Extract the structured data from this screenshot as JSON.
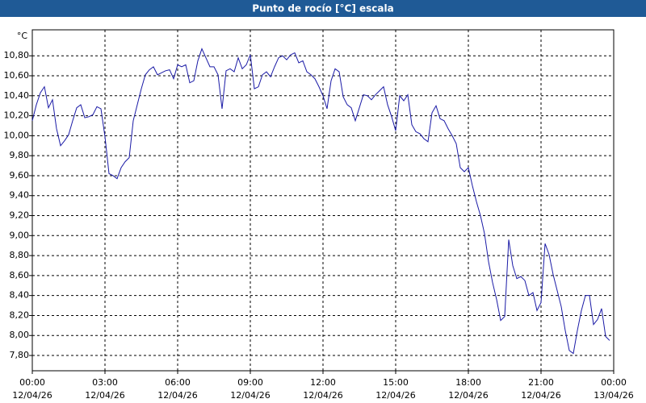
{
  "chart_data": {
    "type": "line",
    "title": "Punto de rocío [°C] escala",
    "y_unit": "°C",
    "color": "#1a1aa6",
    "grid": true,
    "xlim": [
      0,
      1440
    ],
    "xticks": [
      {
        "value": 0,
        "label": "00:00",
        "date": "12/04/26"
      },
      {
        "value": 180,
        "label": "03:00",
        "date": "12/04/26"
      },
      {
        "value": 360,
        "label": "06:00",
        "date": "12/04/26"
      },
      {
        "value": 540,
        "label": "09:00",
        "date": "12/04/26"
      },
      {
        "value": 720,
        "label": "12:00",
        "date": "12/04/26"
      },
      {
        "value": 900,
        "label": "15:00",
        "date": "12/04/26"
      },
      {
        "value": 1080,
        "label": "18:00",
        "date": "12/04/26"
      },
      {
        "value": 1260,
        "label": "21:00",
        "date": "12/04/26"
      },
      {
        "value": 1440,
        "label": "00:00",
        "date": "13/04/26"
      }
    ],
    "ylim": [
      7.647,
      11.06
    ],
    "yticks": [
      {
        "value": 7.8,
        "label": "7,80"
      },
      {
        "value": 8.0,
        "label": "8,00"
      },
      {
        "value": 8.2,
        "label": "8,20"
      },
      {
        "value": 8.4,
        "label": "8,40"
      },
      {
        "value": 8.6,
        "label": "8,60"
      },
      {
        "value": 8.8,
        "label": "8,80"
      },
      {
        "value": 9.0,
        "label": "9,00"
      },
      {
        "value": 9.2,
        "label": "9,20"
      },
      {
        "value": 9.4,
        "label": "9,40"
      },
      {
        "value": 9.6,
        "label": "9,60"
      },
      {
        "value": 9.8,
        "label": "9,80"
      },
      {
        "value": 10.0,
        "label": "10,00"
      },
      {
        "value": 10.2,
        "label": "10,20"
      },
      {
        "value": 10.4,
        "label": "10,40"
      },
      {
        "value": 10.6,
        "label": "10,60"
      },
      {
        "value": 10.8,
        "label": "10,80"
      }
    ],
    "x": [
      0,
      10,
      20,
      30,
      40,
      50,
      60,
      70,
      80,
      90,
      100,
      110,
      120,
      130,
      140,
      150,
      160,
      170,
      180,
      190,
      200,
      210,
      220,
      230,
      240,
      250,
      260,
      270,
      280,
      290,
      300,
      310,
      320,
      330,
      340,
      350,
      360,
      370,
      380,
      390,
      400,
      410,
      420,
      430,
      440,
      450,
      460,
      470,
      480,
      490,
      500,
      510,
      520,
      530,
      540,
      550,
      560,
      570,
      580,
      590,
      600,
      610,
      620,
      630,
      640,
      650,
      660,
      670,
      680,
      690,
      700,
      710,
      720,
      730,
      740,
      750,
      760,
      770,
      780,
      790,
      800,
      810,
      820,
      830,
      840,
      850,
      860,
      870,
      880,
      890,
      900,
      910,
      920,
      930,
      940,
      950,
      960,
      970,
      980,
      990,
      1000,
      1010,
      1020,
      1030,
      1040,
      1050,
      1060,
      1070,
      1080,
      1090,
      1100,
      1110,
      1120,
      1130,
      1140,
      1150,
      1160,
      1170,
      1180,
      1190,
      1200,
      1210,
      1220,
      1230,
      1240,
      1250,
      1260,
      1270,
      1280,
      1290,
      1300,
      1310,
      1320,
      1330,
      1340,
      1350,
      1360,
      1370,
      1380,
      1390,
      1400,
      1410,
      1420,
      1430
    ],
    "values": [
      10.15,
      10.31,
      10.43,
      10.49,
      10.28,
      10.36,
      10.07,
      9.9,
      9.95,
      10.01,
      10.15,
      10.28,
      10.31,
      10.18,
      10.19,
      10.21,
      10.29,
      10.27,
      9.99,
      9.62,
      9.6,
      9.57,
      9.68,
      9.74,
      9.78,
      10.15,
      10.31,
      10.47,
      10.61,
      10.66,
      10.69,
      10.61,
      10.63,
      10.65,
      10.66,
      10.57,
      10.71,
      10.69,
      10.71,
      10.53,
      10.55,
      10.75,
      10.87,
      10.78,
      10.69,
      10.69,
      10.61,
      10.27,
      10.65,
      10.67,
      10.64,
      10.78,
      10.67,
      10.71,
      10.81,
      10.47,
      10.49,
      10.61,
      10.64,
      10.59,
      10.69,
      10.78,
      10.8,
      10.76,
      10.81,
      10.83,
      10.73,
      10.75,
      10.64,
      10.61,
      10.57,
      10.49,
      10.4,
      10.27,
      10.55,
      10.67,
      10.64,
      10.39,
      10.31,
      10.28,
      10.15,
      10.28,
      10.41,
      10.4,
      10.36,
      10.41,
      10.45,
      10.49,
      10.31,
      10.19,
      10.05,
      10.4,
      10.35,
      10.41,
      10.11,
      10.04,
      10.02,
      9.97,
      9.94,
      10.23,
      10.3,
      10.17,
      10.15,
      10.07,
      10.0,
      9.92,
      9.68,
      9.64,
      9.68,
      9.5,
      9.34,
      9.2,
      9.02,
      8.74,
      8.53,
      8.36,
      8.15,
      8.19,
      8.96,
      8.7,
      8.57,
      8.59,
      8.55,
      8.4,
      8.43,
      8.25,
      8.33,
      8.92,
      8.81,
      8.61,
      8.45,
      8.29,
      8.05,
      7.85,
      7.82,
      8.05,
      8.25,
      8.4,
      8.4,
      8.11,
      8.16,
      8.27,
      7.99,
      7.95
    ]
  }
}
